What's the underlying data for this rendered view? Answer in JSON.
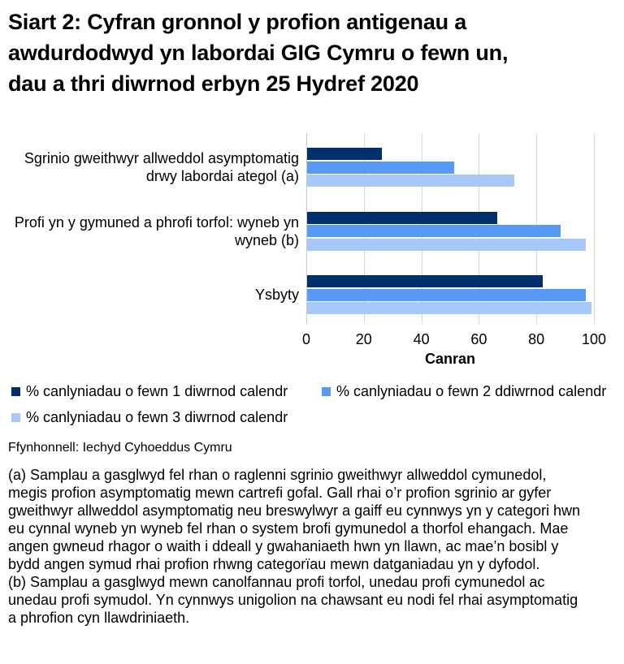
{
  "title": "Siart 2: Cyfran gronnol y profion antigenau a awdurdodwyd yn labordai GIG Cymru o fewn un, dau a thri diwrnod erbyn 25 Hydref 2020",
  "chart_data": {
    "type": "bar",
    "orientation": "horizontal",
    "categories": [
      "Sgrinio gweithwyr allweddol asymptomatig drwy labordai ategol (a)",
      "Profi yn y gymuned a phrofi torfol: wyneb yn wyneb (b)",
      "Ysbyty"
    ],
    "series": [
      {
        "name": "% canlyniadau o fewn 1 diwrnod calendr",
        "color": "#002f6b",
        "values": [
          26,
          66,
          82
        ]
      },
      {
        "name": "% canlyniadau o fewn 2 ddiwrnod calendr",
        "color": "#569af6",
        "values": [
          51,
          88,
          97
        ]
      },
      {
        "name": "% canlyniadau o fewn 3 diwrnod calendr",
        "color": "#a7c8f8",
        "values": [
          72,
          97,
          99
        ]
      }
    ],
    "xlabel": "Canran",
    "xlim": [
      0,
      100
    ],
    "xticks": [
      0,
      20,
      40,
      60,
      80,
      100
    ],
    "grid": true,
    "legend_position": "bottom",
    "gridline_color": "#d9d9d9",
    "axis_line_color": "#b8cdee"
  },
  "source": "Ffynhonnell: Iechyd Cyhoeddus Cymru",
  "footnotes": [
    "(a) Samplau a gasglwyd fel rhan o raglenni sgrinio gweithwyr allweddol cymunedol, megis profion asymptomatig mewn cartrefi gofal. Gall rhai o’r profion sgrinio ar gyfer gweithwyr allweddol asymptomatig neu breswylwyr a gaiff eu cynnwys yn y categori hwn eu cynnal wyneb yn wyneb fel rhan o system brofi gymunedol a thorfol ehangach. Mae angen gwneud rhagor o waith i ddeall y gwahaniaeth hwn yn llawn, ac mae’n bosibl y bydd angen symud rhai profion rhwng categorïau mewn datganiadau yn y dyfodol.",
    "(b) Samplau a gasglwyd mewn canolfannau profi torfol, unedau profi cymunedol ac unedau profi symudol. Yn cynnwys unigolion na chawsant eu nodi fel rhai asymptomatig a phrofion cyn llawdriniaeth."
  ]
}
